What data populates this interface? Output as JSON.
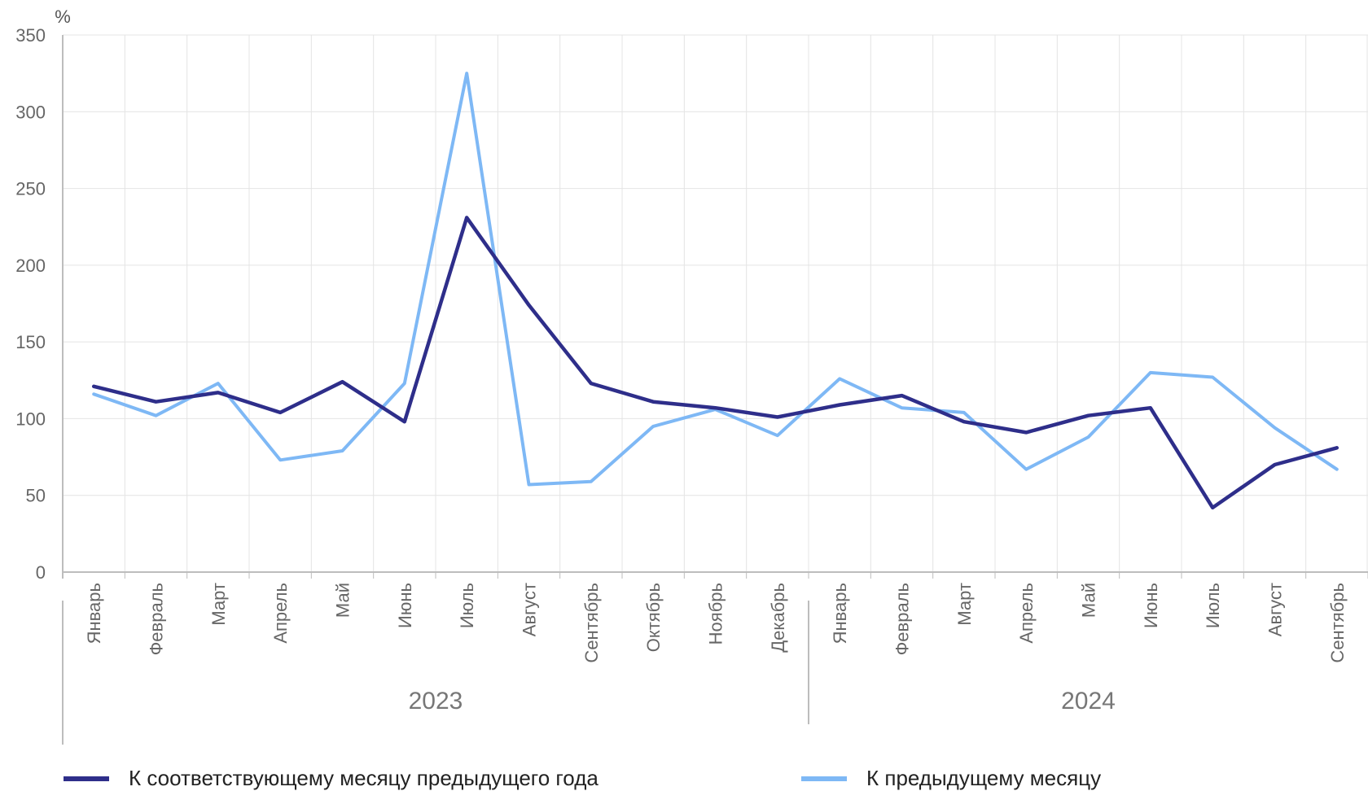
{
  "chart_data": {
    "type": "line",
    "y_unit": "%",
    "ylim": [
      0,
      350
    ],
    "y_ticks": [
      0,
      50,
      100,
      150,
      200,
      250,
      300,
      350
    ],
    "grid": true,
    "categories": [
      "Январь",
      "Февраль",
      "Март",
      "Апрель",
      "Май",
      "Июнь",
      "Июль",
      "Август",
      "Сентябрь",
      "Октябрь",
      "Ноябрь",
      "Декабрь",
      "Январь",
      "Февраль",
      "Март",
      "Апрель",
      "Май",
      "Июнь",
      "Июль",
      "Август",
      "Сентябрь"
    ],
    "groups": [
      {
        "label": "2023",
        "count": 12
      },
      {
        "label": "2024",
        "count": 9
      }
    ],
    "series": [
      {
        "name": "К соответствующему месяцу предыдущего года",
        "color": "#2e2e8a",
        "values": [
          121,
          111,
          117,
          104,
          124,
          98,
          231,
          174,
          123,
          111,
          107,
          101,
          109,
          115,
          98,
          91,
          102,
          107,
          42,
          70,
          81
        ]
      },
      {
        "name": "К предыдущему месяцу",
        "color": "#7eb8f5",
        "values": [
          116,
          102,
          123,
          73,
          79,
          123,
          325,
          57,
          59,
          95,
          106,
          89,
          126,
          107,
          104,
          67,
          88,
          130,
          127,
          94,
          67
        ]
      }
    ],
    "legend_position": "bottom"
  }
}
